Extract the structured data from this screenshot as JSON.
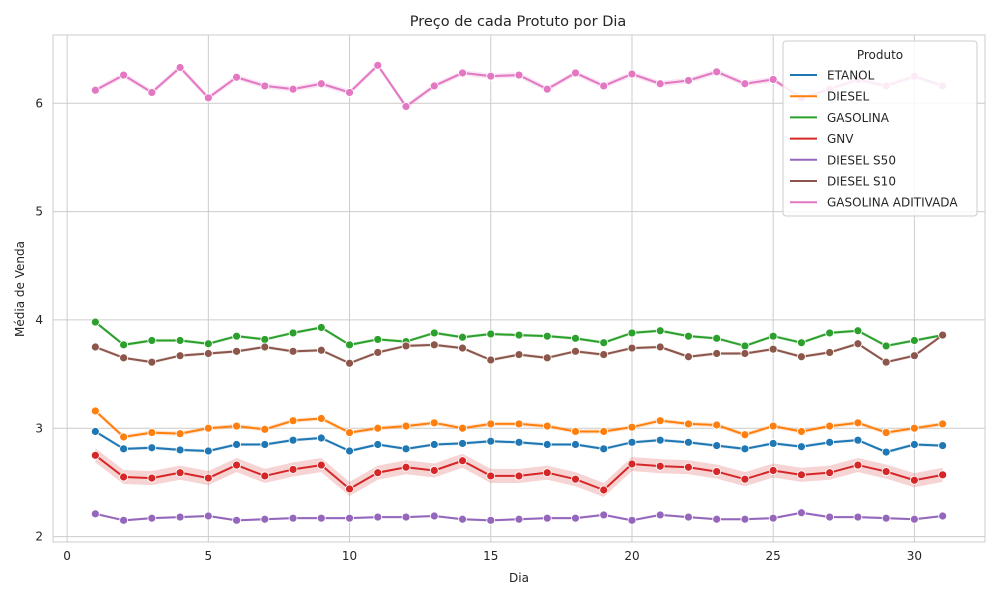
{
  "chart_data": {
    "type": "line",
    "title": "Preço de cada Protuto por Dia",
    "xlabel": "Dia",
    "ylabel": "Média de Venda",
    "xlim": [
      -0.5,
      32.5
    ],
    "ylim": [
      1.95,
      6.63
    ],
    "xticks": [
      0,
      5,
      10,
      15,
      20,
      25,
      30
    ],
    "yticks": [
      2,
      3,
      4,
      5,
      6
    ],
    "grid": true,
    "legend": {
      "title": "Produto",
      "placement": "top-right"
    },
    "x": [
      1,
      2,
      3,
      4,
      5,
      6,
      7,
      8,
      9,
      10,
      11,
      12,
      13,
      14,
      15,
      16,
      17,
      18,
      19,
      20,
      21,
      22,
      23,
      24,
      25,
      26,
      27,
      28,
      29,
      30,
      31
    ],
    "series": [
      {
        "name": "ETANOL",
        "color": "#1f77b4",
        "ci": 0.015,
        "values": [
          2.97,
          2.81,
          2.82,
          2.8,
          2.79,
          2.85,
          2.85,
          2.89,
          2.91,
          2.79,
          2.85,
          2.81,
          2.85,
          2.86,
          2.88,
          2.87,
          2.85,
          2.85,
          2.81,
          2.87,
          2.89,
          2.87,
          2.84,
          2.81,
          2.86,
          2.83,
          2.87,
          2.89,
          2.78,
          2.85,
          2.84
        ]
      },
      {
        "name": "DIESEL",
        "color": "#ff7f0e",
        "ci": 0.02,
        "values": [
          3.16,
          2.92,
          2.96,
          2.95,
          3.0,
          3.02,
          2.99,
          3.07,
          3.09,
          2.96,
          3.0,
          3.02,
          3.05,
          3.0,
          3.04,
          3.04,
          3.02,
          2.97,
          2.97,
          3.01,
          3.07,
          3.04,
          3.03,
          2.94,
          3.02,
          2.97,
          3.02,
          3.05,
          2.96,
          3.0,
          3.04
        ]
      },
      {
        "name": "GASOLINA",
        "color": "#2ca02c",
        "ci": 0.015,
        "values": [
          3.98,
          3.77,
          3.81,
          3.81,
          3.78,
          3.85,
          3.82,
          3.88,
          3.93,
          3.77,
          3.82,
          3.8,
          3.88,
          3.84,
          3.87,
          3.86,
          3.85,
          3.83,
          3.79,
          3.88,
          3.9,
          3.85,
          3.83,
          3.76,
          3.85,
          3.79,
          3.88,
          3.9,
          3.76,
          3.81,
          3.86
        ]
      },
      {
        "name": "GNV",
        "color": "#d62728",
        "ci": 0.065,
        "values": [
          2.75,
          2.55,
          2.54,
          2.59,
          2.54,
          2.66,
          2.56,
          2.62,
          2.66,
          2.44,
          2.59,
          2.64,
          2.61,
          2.7,
          2.56,
          2.56,
          2.59,
          2.53,
          2.43,
          2.67,
          2.65,
          2.64,
          2.6,
          2.53,
          2.61,
          2.57,
          2.59,
          2.66,
          2.6,
          2.52,
          2.57
        ]
      },
      {
        "name": "DIESEL S50",
        "color": "#9467bd",
        "ci": 0.012,
        "values": [
          2.21,
          2.15,
          2.17,
          2.18,
          2.19,
          2.15,
          2.16,
          2.17,
          2.17,
          2.17,
          2.18,
          2.18,
          2.19,
          2.16,
          2.15,
          2.16,
          2.17,
          2.17,
          2.2,
          2.15,
          2.2,
          2.18,
          2.16,
          2.16,
          2.17,
          2.22,
          2.18,
          2.18,
          2.17,
          2.16,
          2.19
        ]
      },
      {
        "name": "DIESEL S10",
        "color": "#8c564b",
        "ci": 0.015,
        "values": [
          3.75,
          3.65,
          3.61,
          3.67,
          3.69,
          3.71,
          3.75,
          3.71,
          3.72,
          3.6,
          3.7,
          3.76,
          3.77,
          3.74,
          3.63,
          3.68,
          3.65,
          3.71,
          3.68,
          3.74,
          3.75,
          3.66,
          3.69,
          3.69,
          3.73,
          3.66,
          3.7,
          3.78,
          3.61,
          3.67,
          3.86
        ]
      },
      {
        "name": "GASOLINA ADITIVADA",
        "color": "#e377c2",
        "ci": 0.025,
        "values": [
          6.12,
          6.26,
          6.1,
          6.33,
          6.05,
          6.24,
          6.16,
          6.13,
          6.18,
          6.1,
          6.35,
          5.97,
          6.16,
          6.28,
          6.25,
          6.26,
          6.13,
          6.28,
          6.16,
          6.27,
          6.18,
          6.21,
          6.29,
          6.18,
          6.22,
          6.05,
          6.13,
          6.22,
          6.16,
          6.25,
          6.16
        ]
      }
    ]
  }
}
